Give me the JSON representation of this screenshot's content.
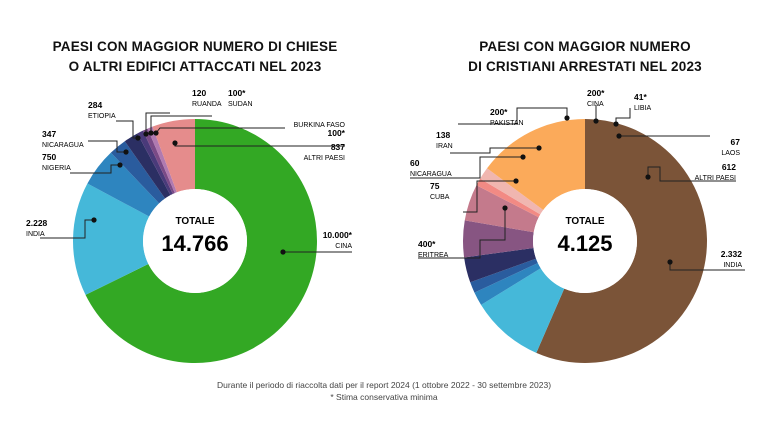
{
  "footnote": "Durante il periodo di riaccolta dati per il report 2024 (1 ottobre 2022 - 30 settembre 2023)",
  "footnote2": "* Stima conservativa minima",
  "colors": {
    "cina_green": "#33a824",
    "india_blue": "#45b8d9",
    "nigeria_blue": "#2e85bf",
    "nicaragua_blue": "#2a5c9e",
    "etiopia_navy": "#2b2f63",
    "ruanda_purple": "#4a3a7a",
    "sudan_plum": "#7a4a86",
    "burkina_mauve": "#b07ab0",
    "altri_pink": "#e58c8c",
    "eritrea_blue": "#45b8d9",
    "india_brown": "#7b5438",
    "altri_orange": "#fbaa5a",
    "pakistan_plum": "#875582",
    "cina_mauve": "#c47a8c",
    "libia_salmon": "#f28a84"
  },
  "chart_data": [
    {
      "type": "pie",
      "title_line1": "PAESI CON MAGGIOR NUMERO DI CHIESE",
      "title_line2": "O ALTRI EDIFICI ATTACCATI NEL 2023",
      "total_label": "TOTALE",
      "total_value": "14.766",
      "slices": [
        {
          "name": "CINA",
          "value": 10000,
          "display": "10.000",
          "star": true,
          "color": "#33a824"
        },
        {
          "name": "INDIA",
          "value": 2228,
          "display": "2.228",
          "star": false,
          "color": "#45b8d9"
        },
        {
          "name": "NIGERIA",
          "value": 750,
          "display": "750",
          "star": false,
          "color": "#2e85bf"
        },
        {
          "name": "NICARAGUA",
          "value": 347,
          "display": "347",
          "star": false,
          "color": "#2a5c9e"
        },
        {
          "name": "ETIOPIA",
          "value": 284,
          "display": "284",
          "star": false,
          "color": "#2b2f63"
        },
        {
          "name": "RUANDA",
          "value": 120,
          "display": "120",
          "star": false,
          "color": "#4a3a7a"
        },
        {
          "name": "SUDAN",
          "value": 100,
          "display": "100",
          "star": true,
          "color": "#7a4a86"
        },
        {
          "name": "BURKINA FASO",
          "value": 100,
          "display": "100",
          "star": true,
          "color": "#b07ab0"
        },
        {
          "name": "ALTRI PAESI",
          "value": 837,
          "display": "837",
          "star": false,
          "color": "#e58c8c"
        }
      ]
    },
    {
      "type": "pie",
      "title_line1": "PAESI CON MAGGIOR NUMERO",
      "title_line2": "DI CRISTIANI ARRESTATI NEL 2023",
      "total_label": "TOTALE",
      "total_value": "4.125",
      "slices": [
        {
          "name": "INDIA",
          "value": 2332,
          "display": "2.332",
          "star": false,
          "color": "#7b5438"
        },
        {
          "name": "ERITREA",
          "value": 400,
          "display": "400",
          "star": true,
          "color": "#45b8d9"
        },
        {
          "name": "CUBA",
          "value": 75,
          "display": "75",
          "star": false,
          "color": "#2e85bf"
        },
        {
          "name": "NICARAGUA",
          "value": 60,
          "display": "60",
          "star": false,
          "color": "#2a5c9e"
        },
        {
          "name": "IRAN",
          "value": 138,
          "display": "138",
          "star": false,
          "color": "#2b2f63"
        },
        {
          "name": "PAKISTAN",
          "value": 200,
          "display": "200",
          "star": true,
          "color": "#875582"
        },
        {
          "name": "CINA",
          "value": 200,
          "display": "200",
          "star": true,
          "color": "#c47a8c"
        },
        {
          "name": "LIBIA",
          "value": 41,
          "display": "41",
          "star": true,
          "color": "#f28a84"
        },
        {
          "name": "LAOS",
          "value": 67,
          "display": "67",
          "star": false,
          "color": "#f0b6b0"
        },
        {
          "name": "ALTRI PAESI",
          "value": 612,
          "display": "612",
          "star": false,
          "color": "#fbaa5a"
        }
      ]
    }
  ]
}
